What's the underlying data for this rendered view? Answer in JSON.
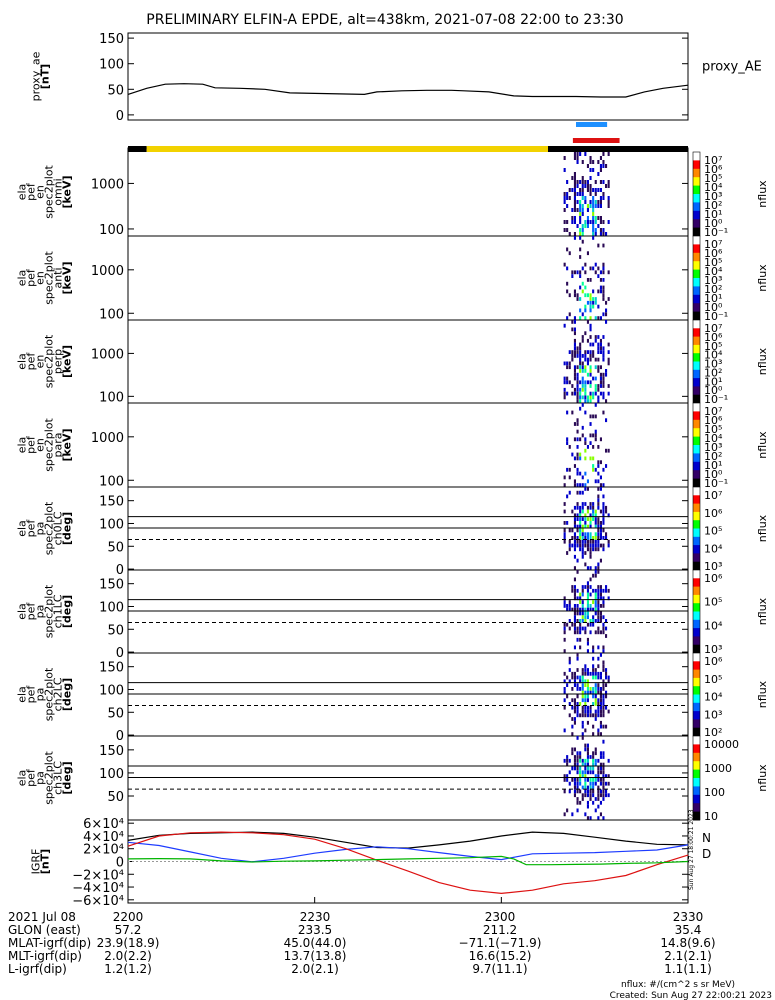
{
  "title": "PRELIMINARY ELFIN-A EPDE, alt=438km, 2021-07-08 22:00 to 23:30",
  "colors": {
    "black": "#000000",
    "yellow": "#f2d200",
    "blue_bar": "#1e90ff",
    "red_bar": "#dd1111",
    "bx": "#000000",
    "by": "#1e3cff",
    "bz": "#dd1111",
    "bmag": "#00b400",
    "legend_n": "#1e3cff",
    "legend_d": "#dd1111"
  },
  "chart_data": {
    "type": "line",
    "x_range_min": [
      0,
      90
    ],
    "panels": [
      {
        "id": "proxy_ae",
        "type": "line",
        "ylabel": [
          "proxy_ae",
          "[nT]"
        ],
        "ylim": [
          -10,
          160
        ],
        "yticks": [
          "0",
          "50",
          "100",
          "150"
        ],
        "ytick_values": [
          0,
          50,
          100,
          150
        ],
        "right_label": "proxy_AE",
        "series": [
          {
            "x": [
              0,
              3,
              6,
              9,
              12,
              14,
              18,
              22,
              26,
              30,
              34,
              38,
              40,
              44,
              48,
              52,
              54,
              58,
              62,
              65,
              68,
              72,
              76,
              80,
              83,
              86,
              90
            ],
            "y": [
              40,
              52,
              60,
              61,
              60,
              53,
              52,
              50,
              43,
              42,
              41,
              40,
              45,
              47,
              48,
              48,
              47,
              45,
              37,
              36,
              36,
              36,
              35,
              35,
              45,
              52,
              58
            ]
          }
        ]
      },
      {
        "id": "en_omni",
        "type": "heatmap",
        "ylabel": [
          "ela",
          "pef",
          "en",
          "spec2plot",
          "omni",
          "[keV]"
        ],
        "yticks": [
          "100",
          "1000"
        ],
        "ytick_values": [
          100,
          1000
        ],
        "cbar_ticks": [
          "10⁷",
          "10⁶",
          "10⁵",
          "10⁴",
          "10³",
          "10²",
          "10¹",
          "10⁰",
          "10⁻¹"
        ],
        "zlabel": "nflux"
      },
      {
        "id": "en_anti",
        "type": "heatmap",
        "ylabel": [
          "ela",
          "pef",
          "en",
          "spec2plot",
          "anti",
          "[keV]"
        ],
        "yticks": [
          "100",
          "1000"
        ],
        "ytick_values": [
          100,
          1000
        ],
        "cbar_ticks": [
          "10⁷",
          "10⁶",
          "10⁵",
          "10⁴",
          "10³",
          "10²",
          "10¹",
          "10⁰",
          "10⁻¹"
        ],
        "zlabel": "nflux"
      },
      {
        "id": "en_perp",
        "type": "heatmap",
        "ylabel": [
          "ela",
          "pef",
          "en",
          "spec2plot",
          "perp",
          "[keV]"
        ],
        "yticks": [
          "100",
          "1000"
        ],
        "ytick_values": [
          100,
          1000
        ],
        "cbar_ticks": [
          "10⁷",
          "10⁶",
          "10⁵",
          "10⁴",
          "10³",
          "10²",
          "10¹",
          "10⁰",
          "10⁻¹"
        ],
        "zlabel": "nflux"
      },
      {
        "id": "en_para",
        "type": "heatmap",
        "ylabel": [
          "ela",
          "pef",
          "en",
          "spec2plot",
          "para",
          "[keV]"
        ],
        "yticks": [
          "100",
          "1000"
        ],
        "ytick_values": [
          100,
          1000
        ],
        "cbar_ticks": [
          "10⁷",
          "10⁶",
          "10⁵",
          "10⁴",
          "10³",
          "10²",
          "10¹",
          "10⁰",
          "10⁻¹"
        ],
        "zlabel": "nflux"
      },
      {
        "id": "pa_ch0",
        "type": "heatmap",
        "ylabel": [
          "ela",
          "pef",
          "pa",
          "spec2plot",
          "ch0LC",
          "[deg]"
        ],
        "yticks": [
          "0",
          "50",
          "100",
          "150"
        ],
        "ytick_values": [
          0,
          50,
          100,
          150
        ],
        "cbar_ticks": [
          "10⁷",
          "10⁶",
          "10⁵",
          "10⁴",
          "10³"
        ],
        "zlabel": "nflux",
        "lc_lines": [
          115,
          90,
          65
        ]
      },
      {
        "id": "pa_ch1",
        "type": "heatmap",
        "ylabel": [
          "ela",
          "pef",
          "pa",
          "spec2plot",
          "ch1LC",
          "[deg]"
        ],
        "yticks": [
          "0",
          "50",
          "100",
          "150"
        ],
        "ytick_values": [
          0,
          50,
          100,
          150
        ],
        "cbar_ticks": [
          "10⁶",
          "10⁵",
          "10⁴",
          "10³"
        ],
        "zlabel": "nflux",
        "lc_lines": [
          115,
          90,
          65
        ]
      },
      {
        "id": "pa_ch2",
        "type": "heatmap",
        "ylabel": [
          "ela",
          "pef",
          "pa",
          "spec2plot",
          "ch2LC",
          "[deg]"
        ],
        "yticks": [
          "0",
          "50",
          "100",
          "150"
        ],
        "ytick_values": [
          0,
          50,
          100,
          150
        ],
        "cbar_ticks": [
          "10⁶",
          "10⁵",
          "10⁴",
          "10³",
          "10²"
        ],
        "zlabel": "nflux",
        "lc_lines": [
          115,
          90,
          65
        ]
      },
      {
        "id": "pa_ch3",
        "type": "heatmap",
        "ylabel": [
          "ela",
          "pef",
          "pa",
          "spec2plot",
          "ch3LC",
          "[deg]"
        ],
        "yticks": [
          "50",
          "100",
          "150"
        ],
        "ytick_values": [
          50,
          100,
          150
        ],
        "cbar_ticks": [
          "10000",
          "1000",
          "100",
          "10"
        ],
        "zlabel": "nflux",
        "lc_lines": [
          115,
          90,
          65
        ]
      },
      {
        "id": "igrf",
        "type": "line",
        "ylabel": [
          "IGRF",
          "[nT]"
        ],
        "ylim": [
          -65000,
          65000
        ],
        "yticks": [
          "6×10⁴",
          "4×10⁴",
          "2×10⁴",
          "0",
          "−2×10⁴",
          "−4×10⁴",
          "−6×10⁴"
        ],
        "ytick_values": [
          60000,
          40000,
          20000,
          0,
          -20000,
          -40000,
          -60000
        ],
        "legend": [
          "N",
          "D"
        ],
        "series": [
          {
            "color_key": "bx",
            "x": [
              0,
              5,
              10,
              15,
              20,
              25,
              30,
              35,
              40,
              45,
              50,
              55,
              60,
              65,
              70,
              75,
              80,
              85,
              90
            ],
            "y": [
              33000,
              41000,
              44000,
              45000,
              46000,
              44000,
              38000,
              30000,
              22000,
              21000,
              26000,
              32000,
              40000,
              46000,
              44000,
              38000,
              32000,
              27000,
              26000
            ]
          },
          {
            "color_key": "by",
            "x": [
              0,
              5,
              10,
              15,
              20,
              25,
              30,
              35,
              40,
              45,
              50,
              55,
              60,
              65,
              70,
              75,
              80,
              85,
              90
            ],
            "y": [
              30000,
              25000,
              15000,
              5000,
              -500,
              5000,
              13000,
              19000,
              23000,
              20000,
              14000,
              8000,
              3000,
              12000,
              13000,
              14000,
              16000,
              18000,
              26000
            ]
          },
          {
            "color_key": "bz",
            "x": [
              0,
              5,
              10,
              15,
              20,
              25,
              30,
              35,
              40,
              45,
              50,
              55,
              60,
              65,
              70,
              75,
              80,
              85,
              90
            ],
            "y": [
              24000,
              40000,
              45000,
              46000,
              45000,
              42000,
              35000,
              20000,
              2000,
              -15000,
              -33000,
              -45000,
              -50000,
              -45000,
              -35000,
              -30000,
              -22000,
              -5000,
              10000
            ]
          },
          {
            "color_key": "bmag",
            "x": [
              0,
              5,
              10,
              15,
              20,
              25,
              30,
              35,
              40,
              45,
              50,
              55,
              60,
              62,
              64,
              68,
              72,
              76,
              80,
              85,
              90
            ],
            "y": [
              4000,
              4500,
              4000,
              1000,
              -800,
              500,
              1000,
              2000,
              3000,
              4000,
              5000,
              6000,
              8000,
              4000,
              -5000,
              -5000,
              -4500,
              -4000,
              -3000,
              -2000,
              0
            ]
          }
        ]
      }
    ],
    "orbit_bar": [
      {
        "from": 0,
        "to": 3,
        "color_key": "black"
      },
      {
        "from": 3,
        "to": 67.5,
        "color_key": "yellow"
      },
      {
        "from": 67.5,
        "to": 90,
        "color_key": "black"
      }
    ],
    "science_bars": [
      {
        "from": 72,
        "to": 77,
        "color_key": "blue_bar"
      },
      {
        "from": 71.5,
        "to": 79,
        "color_key": "red_bar"
      }
    ],
    "xticks": [
      "2200",
      "2230",
      "2300",
      "2330"
    ],
    "xtick_values": [
      0,
      30,
      60,
      90
    ]
  },
  "ephem": {
    "rows": [
      {
        "label": "2021 Jul 08",
        "values": [
          "2200",
          "2230",
          "2300",
          "2330"
        ]
      },
      {
        "label": "GLON (east)",
        "values": [
          "57.2",
          "233.5",
          "211.2",
          "35.4"
        ]
      },
      {
        "label": "MLAT-igrf(dip)",
        "values": [
          "23.9(18.9)",
          "45.0(44.0)",
          "−71.1(−71.9)",
          "14.8(9.6)"
        ]
      },
      {
        "label": "MLT-igrf(dip)",
        "values": [
          "2.0(2.2)",
          "13.7(13.8)",
          "16.6(15.2)",
          "2.1(2.1)"
        ]
      },
      {
        "label": "L-igrf(dip)",
        "values": [
          "1.2(1.2)",
          "2.0(2.1)",
          "9.7(11.1)",
          "1.1(1.1)"
        ]
      }
    ]
  },
  "footer": {
    "units": "nflux: #/(cm^2 s sr MeV)",
    "created": "Created: Sun Aug 27 22:00:21 2023",
    "side_stamp": "Sun Aug 27 18:00:21 2023"
  }
}
